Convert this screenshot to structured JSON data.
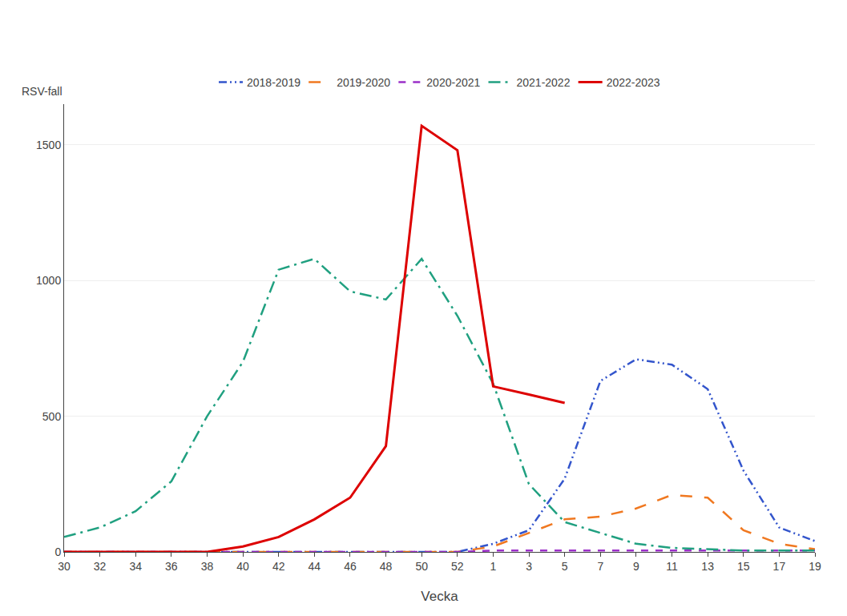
{
  "chart_data": {
    "type": "line",
    "xlabel": "Vecka",
    "ylabel": "RSV-fall",
    "categories": [
      "30",
      "32",
      "34",
      "36",
      "38",
      "40",
      "42",
      "44",
      "46",
      "48",
      "50",
      "52",
      "1",
      "3",
      "5",
      "7",
      "9",
      "11",
      "13",
      "15",
      "17",
      "19"
    ],
    "ylim": [
      0,
      1650
    ],
    "yticks": [
      0,
      500,
      1000,
      1500
    ],
    "grid": true,
    "legend": "top",
    "series": [
      {
        "name": "2018-2019",
        "color": "#3355cc",
        "line_style": "dashdotdot",
        "values": [
          0,
          0,
          0,
          0,
          0,
          0,
          0,
          0,
          0,
          0,
          0,
          0,
          30,
          80,
          270,
          630,
          710,
          690,
          600,
          300,
          90,
          40
        ]
      },
      {
        "name": "2019-2020",
        "color": "#f07820",
        "line_style": "longdash",
        "values": [
          0,
          0,
          0,
          0,
          0,
          0,
          0,
          0,
          0,
          0,
          0,
          0,
          20,
          70,
          120,
          130,
          160,
          210,
          200,
          80,
          30,
          10
        ]
      },
      {
        "name": "2020-2021",
        "color": "#9b30c8",
        "line_style": "dash",
        "values": [
          0,
          0,
          0,
          0,
          0,
          0,
          0,
          0,
          0,
          0,
          0,
          0,
          5,
          5,
          5,
          5,
          5,
          5,
          5,
          5,
          5,
          5
        ]
      },
      {
        "name": "2021-2022",
        "color": "#20a080",
        "line_style": "longdashdot",
        "values": [
          55,
          90,
          150,
          260,
          500,
          700,
          1040,
          1080,
          960,
          930,
          1080,
          870,
          620,
          250,
          110,
          70,
          30,
          15,
          10,
          5,
          5,
          5
        ]
      },
      {
        "name": "2022-2023",
        "color": "#dd0000",
        "line_style": "solid",
        "values": [
          0,
          0,
          0,
          0,
          0,
          20,
          55,
          120,
          200,
          390,
          1570,
          1480,
          610,
          580,
          549,
          null,
          null,
          null,
          null,
          null,
          null,
          null
        ]
      }
    ]
  }
}
